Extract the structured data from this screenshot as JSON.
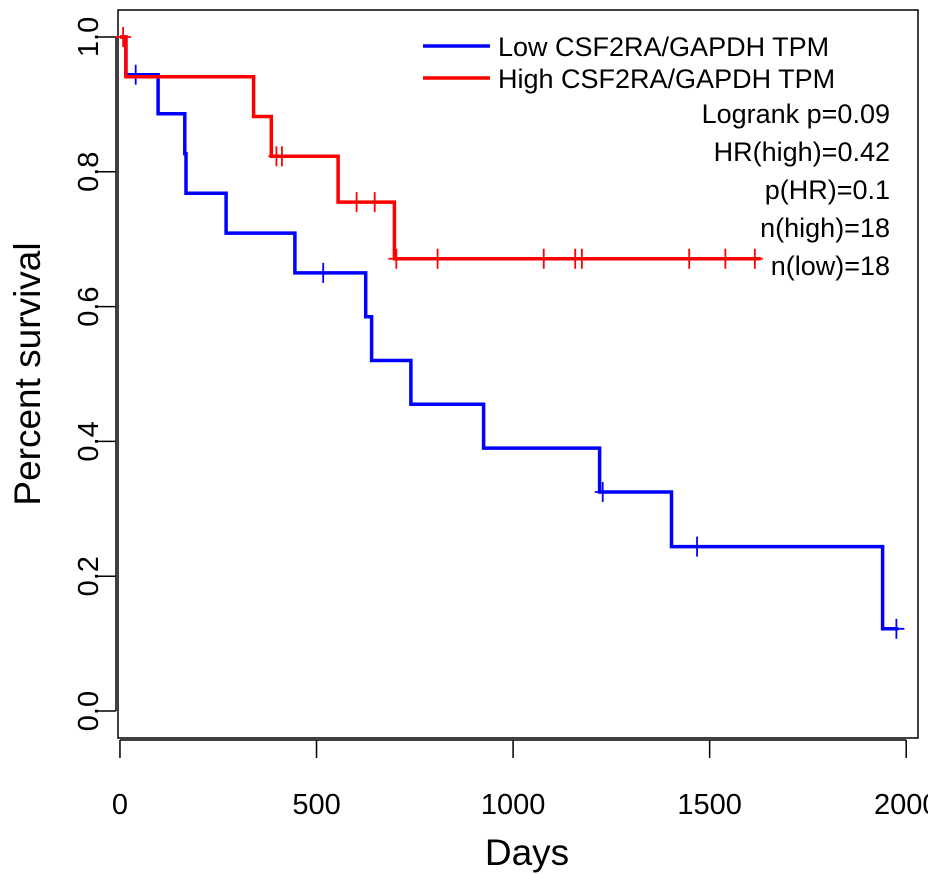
{
  "chart_data": {
    "type": "line",
    "subtype": "kaplan-meier-step",
    "title": "",
    "xlabel": "Days",
    "ylabel": "Percent survival",
    "xlim": [
      -5,
      2030
    ],
    "ylim": [
      -0.04,
      1.04
    ],
    "xticks": [
      0,
      500,
      1000,
      1500,
      2000
    ],
    "xtick_labels": [
      "0",
      "500",
      "1000",
      "1500",
      "2000"
    ],
    "yticks": [
      0.0,
      0.2,
      0.4,
      0.6,
      0.8,
      1.0
    ],
    "ytick_labels": [
      "0.0",
      "0.2",
      "0.4",
      "0.6",
      "0.8",
      "1.0"
    ],
    "grid": false,
    "legend_position": "top-right",
    "series": [
      {
        "name": "Low CSF2RA/GAPDH TPM",
        "color": "#0000ff",
        "steps": [
          [
            0,
            1.0
          ],
          [
            15,
            1.0
          ],
          [
            15,
            0.944
          ],
          [
            97,
            0.944
          ],
          [
            97,
            0.886
          ],
          [
            165,
            0.886
          ],
          [
            165,
            0.827
          ],
          [
            168,
            0.827
          ],
          [
            168,
            0.768
          ],
          [
            270,
            0.768
          ],
          [
            270,
            0.709
          ],
          [
            445,
            0.709
          ],
          [
            445,
            0.65
          ],
          [
            625,
            0.65
          ],
          [
            625,
            0.585
          ],
          [
            640,
            0.585
          ],
          [
            640,
            0.52
          ],
          [
            740,
            0.52
          ],
          [
            740,
            0.455
          ],
          [
            925,
            0.455
          ],
          [
            925,
            0.39
          ],
          [
            1220,
            0.39
          ],
          [
            1220,
            0.325
          ],
          [
            1403,
            0.325
          ],
          [
            1403,
            0.244
          ],
          [
            1940,
            0.244
          ],
          [
            1940,
            0.122
          ],
          [
            1980,
            0.122
          ]
        ],
        "censored": [
          [
            40,
            0.944
          ],
          [
            517,
            0.65
          ],
          [
            1228,
            0.325
          ],
          [
            1468,
            0.244
          ],
          [
            1975,
            0.122
          ]
        ]
      },
      {
        "name": "High CSF2RA/GAPDH TPM",
        "color": "#ff0000",
        "steps": [
          [
            0,
            1.0
          ],
          [
            15,
            1.0
          ],
          [
            15,
            0.941
          ],
          [
            340,
            0.941
          ],
          [
            340,
            0.882
          ],
          [
            385,
            0.882
          ],
          [
            385,
            0.823
          ],
          [
            555,
            0.823
          ],
          [
            555,
            0.755
          ],
          [
            698,
            0.755
          ],
          [
            698,
            0.671
          ],
          [
            1630,
            0.671
          ]
        ],
        "censored": [
          [
            8,
            1.0
          ],
          [
            398,
            0.823
          ],
          [
            412,
            0.823
          ],
          [
            602,
            0.755
          ],
          [
            648,
            0.755
          ],
          [
            703,
            0.671
          ],
          [
            808,
            0.671
          ],
          [
            1078,
            0.671
          ],
          [
            1158,
            0.671
          ],
          [
            1175,
            0.671
          ],
          [
            1448,
            0.671
          ],
          [
            1540,
            0.671
          ],
          [
            1615,
            0.671
          ]
        ]
      }
    ],
    "annotations": [
      "Logrank p=0.09",
      "HR(high)=0.42",
      "p(HR)=0.1",
      "n(high)=18",
      "n(low)=18"
    ]
  }
}
